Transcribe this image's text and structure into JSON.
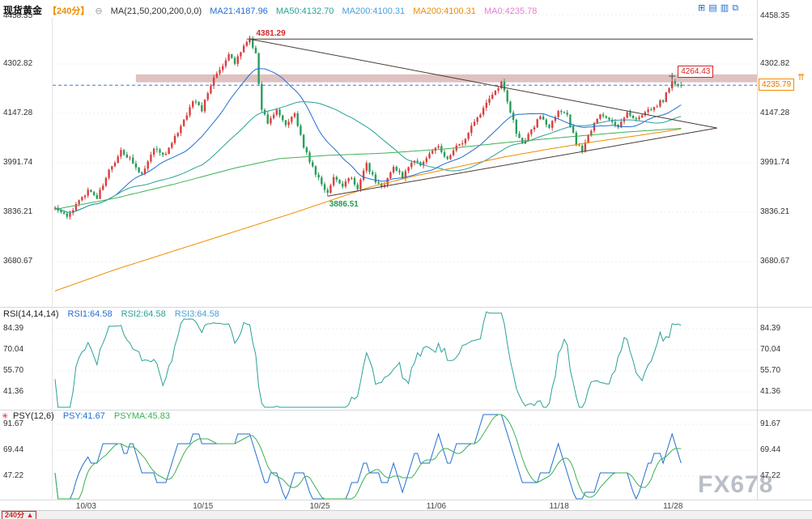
{
  "header": {
    "instrument": "现货黄金",
    "timeframe": "【240分】",
    "collapse_glyph": "⊖",
    "ma_settings": "MA(21,50,200,200,0,0)",
    "ma_items": [
      {
        "text": "MA21:4187.96",
        "color": "#1f6fd0"
      },
      {
        "text": "MA50:4132.70",
        "color": "#2aa198"
      },
      {
        "text": "MA200:4100.31",
        "color": "#49a0d8"
      },
      {
        "text": "MA200:4100.31",
        "color": "#f08c00"
      },
      {
        "text": "MA0:4235.78",
        "color": "#e07fd0"
      }
    ],
    "toolbar_icons": [
      {
        "name": "grid-icon",
        "glyph": "⊞"
      },
      {
        "name": "layout-rows-icon",
        "glyph": "▤"
      },
      {
        "name": "layout-columns-icon",
        "glyph": "▥"
      },
      {
        "name": "popout-icon",
        "glyph": "⧉"
      }
    ]
  },
  "axes": {
    "main": [
      "4458.35",
      "4302.82",
      "4147.28",
      "3991.74",
      "3836.21",
      "3680.67"
    ]
  },
  "rsi": {
    "settings": "RSI(14,14,14)",
    "items": [
      {
        "text": "RSI1:64.58",
        "color": "#1f6fd0"
      },
      {
        "text": "RSI2:64.58",
        "color": "#2aa198"
      },
      {
        "text": "RSI3:64.58",
        "color": "#49a0d8"
      }
    ],
    "axis": [
      "84.39",
      "70.04",
      "55.70",
      "41.36"
    ]
  },
  "psy": {
    "settings": "PSY(12,6)",
    "items": [
      {
        "text": "PSY:41.67",
        "color": "#1f6fd0"
      },
      {
        "text": "PSYMA:45.83",
        "color": "#3cb054"
      }
    ],
    "axis": [
      "91.67",
      "69.44",
      "47.22"
    ]
  },
  "annotations": {
    "peak": "4381.29",
    "low": "3886.51",
    "recent_high": "4264.43",
    "last_price": "4235.79",
    "up_arrows": "⇈",
    "marker_glyph": "✳"
  },
  "footer": {
    "timeframe": "240分",
    "arrow": "▲"
  },
  "watermark": "FX678",
  "chart_data": {
    "type": "candlestick",
    "title": "现货黄金 240分",
    "symbol": "现货黄金",
    "interval": "240分",
    "bars": 210,
    "price_axis": [
      4458.35,
      4302.82,
      4147.28,
      3991.74,
      3836.21,
      3680.67
    ],
    "rsi_axis": [
      84.39,
      70.04,
      55.7,
      41.36
    ],
    "psy_axis": [
      91.67,
      69.44,
      47.22
    ],
    "x_ticks": [
      {
        "label": "10/03",
        "index": 7
      },
      {
        "label": "10/15",
        "index": 46
      },
      {
        "label": "10/25",
        "index": 85
      },
      {
        "label": "11/06",
        "index": 124
      },
      {
        "label": "11/18",
        "index": 165
      },
      {
        "label": "11/28",
        "index": 203
      }
    ],
    "close_anchors": [
      [
        0,
        3845
      ],
      [
        4,
        3828
      ],
      [
        8,
        3868
      ],
      [
        11,
        3902
      ],
      [
        14,
        3878
      ],
      [
        18,
        3965
      ],
      [
        22,
        4030
      ],
      [
        26,
        3992
      ],
      [
        29,
        3955
      ],
      [
        33,
        4038
      ],
      [
        37,
        4018
      ],
      [
        41,
        4090
      ],
      [
        46,
        4185
      ],
      [
        49,
        4160
      ],
      [
        53,
        4255
      ],
      [
        56,
        4300
      ],
      [
        58,
        4340
      ],
      [
        60,
        4310
      ],
      [
        63,
        4355
      ],
      [
        65,
        4381
      ],
      [
        67,
        4330
      ],
      [
        69,
        4160
      ],
      [
        71,
        4120
      ],
      [
        74,
        4165
      ],
      [
        77,
        4108
      ],
      [
        80,
        4145
      ],
      [
        83,
        4045
      ],
      [
        86,
        3975
      ],
      [
        89,
        3920
      ],
      [
        91,
        3895
      ],
      [
        93,
        3950
      ],
      [
        96,
        3918
      ],
      [
        99,
        3945
      ],
      [
        101,
        3912
      ],
      [
        104,
        3985
      ],
      [
        107,
        3932
      ],
      [
        110,
        3918
      ],
      [
        113,
        3978
      ],
      [
        116,
        3948
      ],
      [
        119,
        3998
      ],
      [
        122,
        3985
      ],
      [
        125,
        4018
      ],
      [
        128,
        4040
      ],
      [
        131,
        4002
      ],
      [
        134,
        4045
      ],
      [
        137,
        4065
      ],
      [
        140,
        4120
      ],
      [
        143,
        4165
      ],
      [
        146,
        4210
      ],
      [
        149,
        4242
      ],
      [
        151,
        4190
      ],
      [
        154,
        4085
      ],
      [
        156,
        4055
      ],
      [
        159,
        4092
      ],
      [
        162,
        4140
      ],
      [
        165,
        4108
      ],
      [
        168,
        4152
      ],
      [
        171,
        4138
      ],
      [
        174,
        4052
      ],
      [
        176,
        4028
      ],
      [
        179,
        4095
      ],
      [
        182,
        4150
      ],
      [
        185,
        4125
      ],
      [
        188,
        4108
      ],
      [
        191,
        4148
      ],
      [
        194,
        4132
      ],
      [
        197,
        4155
      ],
      [
        200,
        4165
      ],
      [
        203,
        4190
      ],
      [
        206,
        4248
      ],
      [
        209,
        4236
      ]
    ],
    "key_points": {
      "peak": {
        "index": 65,
        "price": 4381.29
      },
      "low": {
        "index": 91,
        "price": 3886.51
      },
      "recent_high": {
        "index": 206,
        "price": 4264.43
      },
      "last_close": 4235.79
    },
    "indicators": {
      "ma_periods": [
        21,
        50
      ],
      "rsi_period": 14,
      "psy_period": 12,
      "psyma_period": 6,
      "ma_values": {
        "ma21": 4187.96,
        "ma50": 4132.7,
        "ma200_a": 4100.31,
        "ma200_b": 4100.31,
        "ma0": 4235.78
      },
      "rsi_values": {
        "rsi1": 64.58,
        "rsi2": 64.58,
        "rsi3": 64.58
      },
      "psy_values": {
        "psy": 41.67,
        "psyma": 45.83
      },
      "ma200_green_anchors": [
        [
          0,
          3845
        ],
        [
          20,
          3880
        ],
        [
          40,
          3925
        ],
        [
          60,
          3975
        ],
        [
          75,
          4005
        ],
        [
          91,
          4015
        ],
        [
          110,
          4022
        ],
        [
          130,
          4035
        ],
        [
          150,
          4055
        ],
        [
          170,
          4072
        ],
        [
          190,
          4088
        ],
        [
          209,
          4100
        ]
      ],
      "ma200_orange_anchors": [
        [
          0,
          3588
        ],
        [
          20,
          3655
        ],
        [
          40,
          3715
        ],
        [
          60,
          3775
        ],
        [
          80,
          3835
        ],
        [
          91,
          3870
        ],
        [
          105,
          3915
        ],
        [
          120,
          3950
        ],
        [
          135,
          3980
        ],
        [
          150,
          4010
        ],
        [
          165,
          4035
        ],
        [
          180,
          4058
        ],
        [
          195,
          4078
        ],
        [
          209,
          4098
        ]
      ]
    },
    "trendlines": [
      {
        "i1": 65,
        "p1": 4381.29,
        "i2": 233,
        "p2": 4381.29
      },
      {
        "i1": 65,
        "p1": 4381.29,
        "i2": 221,
        "p2": 4101
      },
      {
        "i1": 91,
        "p1": 3886.51,
        "i2": 221,
        "p2": 4101
      }
    ],
    "resistance_band": {
      "price_top": 4270,
      "price_bottom": 4245,
      "start_index": 27
    },
    "current_price": 4235.79,
    "seed": 20231128,
    "colors": {
      "up": "#d94040",
      "down": "#2a9d5c",
      "ma21": "#1f6fd0",
      "ma50": "#2aa198",
      "ma200_green": "#3cb054",
      "ma200_orange": "#f08c00",
      "rsi": "#2aa198",
      "psy": "#1f6fd0",
      "psyma": "#3cb054",
      "trendline": "#4a3a33",
      "band": "rgba(186,118,118,0.45)",
      "price_line": "#3a7bd5"
    }
  }
}
